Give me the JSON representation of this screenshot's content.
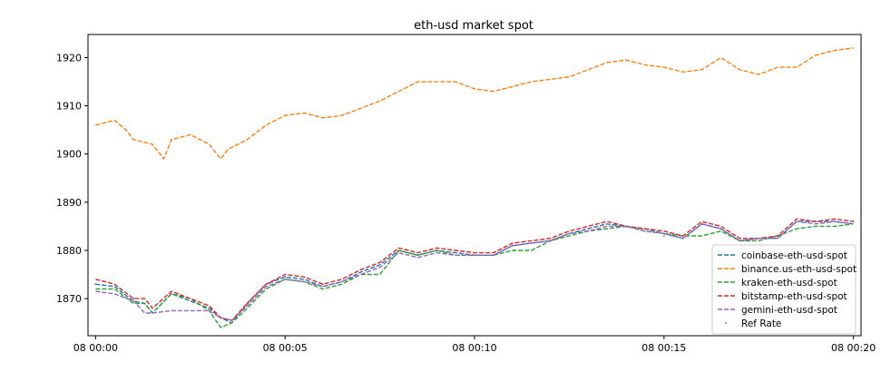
{
  "chart_data": {
    "type": "line",
    "title": "eth-usd market spot",
    "xlabel": "",
    "ylabel": "",
    "x_unit": "minutes",
    "xlim": [
      -0.2,
      20.2
    ],
    "ylim": [
      1862.3,
      1924.8
    ],
    "xticks": [
      {
        "value": 0,
        "label": "08 00:00"
      },
      {
        "value": 5,
        "label": "08 00:05"
      },
      {
        "value": 10,
        "label": "08 00:10"
      },
      {
        "value": 15,
        "label": "08 00:15"
      },
      {
        "value": 20,
        "label": "08 00:20"
      }
    ],
    "yticks": [
      1870,
      1880,
      1890,
      1900,
      1910,
      1920
    ],
    "grid": false,
    "legend_position": "lower-right",
    "series": [
      {
        "name": "coinbase-eth-usd-spot",
        "color": "#1f77b4",
        "style": "dashed",
        "x": [
          0,
          0.5,
          1,
          1.3,
          1.5,
          2,
          2.5,
          3,
          3.3,
          3.6,
          4,
          4.5,
          5,
          5.5,
          6,
          6.5,
          7,
          7.5,
          8,
          8.5,
          9,
          9.5,
          10,
          10.5,
          11,
          11.5,
          12,
          12.5,
          13,
          13.5,
          14,
          14.5,
          15,
          15.5,
          16,
          16.5,
          17,
          17.5,
          18,
          18.5,
          19,
          19.5,
          20
        ],
        "y": [
          1873,
          1872.5,
          1869.5,
          1869,
          1867,
          1871,
          1869.5,
          1868,
          1866,
          1865,
          1869,
          1873,
          1874.5,
          1874,
          1872.5,
          1873.5,
          1875.5,
          1877,
          1880,
          1879,
          1880,
          1879.5,
          1879,
          1879,
          1881,
          1881.5,
          1882,
          1883.5,
          1884.5,
          1885.5,
          1885,
          1884.5,
          1883.5,
          1882.5,
          1885.5,
          1884.5,
          1882,
          1882.5,
          1882.5,
          1886,
          1886,
          1886,
          1885.5
        ]
      },
      {
        "name": "binance.us-eth-usd-spot",
        "color": "#ff7f0e",
        "style": "dashed",
        "x": [
          0,
          0.5,
          0.8,
          1,
          1.5,
          1.8,
          2,
          2.5,
          3,
          3.3,
          3.5,
          4,
          4.5,
          5,
          5.5,
          6,
          6.5,
          7,
          7.5,
          8,
          8.5,
          9,
          9.5,
          10,
          10.5,
          11,
          11.5,
          12,
          12.5,
          13,
          13.5,
          14,
          14.5,
          15,
          15.5,
          16,
          16.5,
          17,
          17.5,
          18,
          18.5,
          19,
          19.5,
          20
        ],
        "y": [
          1906,
          1907,
          1905,
          1903,
          1902,
          1899,
          1903,
          1904,
          1902,
          1899,
          1901,
          1903,
          1906,
          1908,
          1908.5,
          1907.5,
          1908,
          1909.5,
          1911,
          1913,
          1915,
          1915,
          1915,
          1913.5,
          1913,
          1914,
          1915,
          1915.5,
          1916,
          1917.5,
          1919,
          1919.5,
          1918.5,
          1918,
          1917,
          1917.5,
          1920,
          1917.5,
          1916.5,
          1918,
          1918,
          1920.5,
          1921.5,
          1922
        ]
      },
      {
        "name": "kraken-eth-usd-spot",
        "color": "#2ca02c",
        "style": "dashed",
        "x": [
          0,
          0.5,
          1,
          1.3,
          1.5,
          2,
          2.5,
          3,
          3.3,
          3.6,
          4,
          4.5,
          5,
          5.5,
          6,
          6.5,
          7,
          7.5,
          8,
          8.5,
          9,
          9.5,
          10,
          10.5,
          11,
          11.5,
          12,
          12.5,
          13,
          13.5,
          14,
          14.5,
          15,
          15.5,
          16,
          16.5,
          17,
          17.5,
          18,
          18.5,
          19,
          19.5,
          20
        ],
        "y": [
          1872,
          1872,
          1869,
          1869,
          1867,
          1871,
          1870,
          1867.5,
          1864,
          1865,
          1868,
          1872,
          1874,
          1873.5,
          1872,
          1873,
          1875,
          1875,
          1880,
          1879,
          1880,
          1879,
          1879,
          1879,
          1880,
          1880,
          1882,
          1883,
          1884,
          1884.5,
          1885,
          1884,
          1883.5,
          1883,
          1883,
          1884,
          1882,
          1882,
          1883,
          1884.5,
          1885,
          1885,
          1885.5
        ]
      },
      {
        "name": "bitstamp-eth-usd-spot",
        "color": "#d62728",
        "style": "dashed",
        "x": [
          0,
          0.5,
          1,
          1.3,
          1.5,
          2,
          2.5,
          3,
          3.3,
          3.6,
          4,
          4.5,
          5,
          5.5,
          6,
          6.5,
          7,
          7.5,
          8,
          8.5,
          9,
          9.5,
          10,
          10.5,
          11,
          11.5,
          12,
          12.5,
          13,
          13.5,
          14,
          14.5,
          15,
          15.5,
          16,
          16.5,
          17,
          17.5,
          18,
          18.5,
          19,
          19.5,
          20
        ],
        "y": [
          1874,
          1873,
          1870,
          1870,
          1868,
          1871.5,
          1870,
          1868.5,
          1866,
          1865.5,
          1869,
          1873,
          1875,
          1874.5,
          1873,
          1874,
          1876,
          1877.5,
          1880.5,
          1879.5,
          1880.5,
          1880,
          1879.5,
          1879.5,
          1881.5,
          1882,
          1882.5,
          1884,
          1885,
          1886,
          1885,
          1884.5,
          1884,
          1883,
          1886,
          1885,
          1882.5,
          1882.5,
          1883,
          1886.5,
          1886,
          1886.5,
          1886
        ]
      },
      {
        "name": "gemini-eth-usd-spot",
        "color": "#9467bd",
        "style": "dashed",
        "x": [
          0,
          0.5,
          1,
          1.3,
          1.5,
          2,
          2.5,
          3,
          3.3,
          3.6,
          4,
          4.5,
          5,
          5.5,
          6,
          6.5,
          7,
          7.5,
          8,
          8.5,
          9,
          9.5,
          10,
          10.5,
          11,
          11.5,
          12,
          12.5,
          13,
          13.5,
          14,
          14.5,
          15,
          15.5,
          16,
          16.5,
          17,
          17.5,
          18,
          18.5,
          19,
          19.5,
          20
        ],
        "y": [
          1871.5,
          1871,
          1869.5,
          1867,
          1867,
          1867.5,
          1867.5,
          1867.5,
          1866,
          1865.5,
          1868.5,
          1872.5,
          1874,
          1873.5,
          1872.5,
          1873.5,
          1875,
          1876.5,
          1879.5,
          1878.5,
          1879.5,
          1879,
          1879,
          1879,
          1881,
          1881.5,
          1882,
          1883.5,
          1884,
          1885,
          1885,
          1884,
          1883.5,
          1882.5,
          1885.5,
          1884.5,
          1882,
          1882.5,
          1882.5,
          1886,
          1885.5,
          1886,
          1885.5
        ]
      },
      {
        "name": "Ref Rate",
        "color": "#8c564b",
        "style": "points",
        "x": [
          0,
          1,
          2,
          3,
          4,
          5,
          6,
          7,
          8,
          9,
          10,
          11,
          12,
          13,
          14,
          15,
          16,
          17,
          18,
          19,
          20
        ],
        "y": [
          1873,
          1870,
          1871,
          1868,
          1869,
          1874.5,
          1873,
          1876,
          1880,
          1880,
          1879,
          1881,
          1882,
          1884.5,
          1885,
          1883,
          1885.5,
          1882,
          1883,
          1886,
          1886
        ]
      }
    ]
  }
}
